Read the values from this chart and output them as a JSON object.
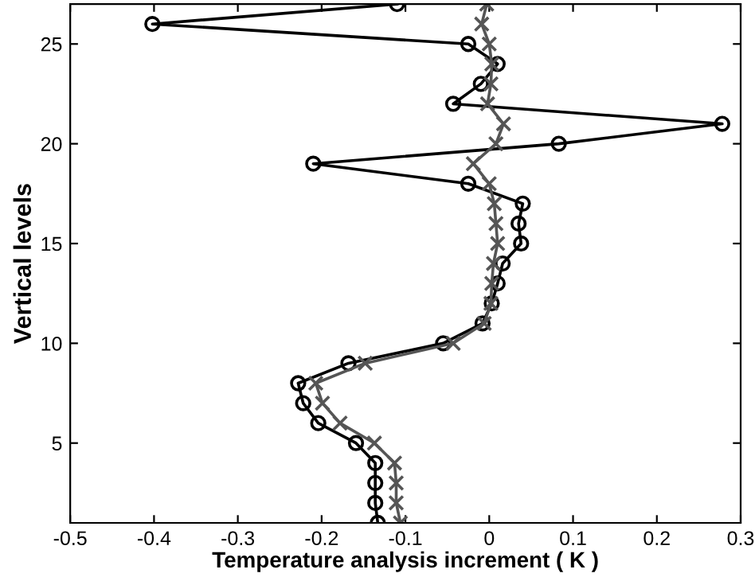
{
  "chart_data": {
    "type": "line",
    "xlabel": "Temperature analysis increment ( K )",
    "ylabel": "Vertical levels",
    "xlim": [
      -0.5,
      0.3
    ],
    "ylim": [
      1,
      27
    ],
    "xticks": [
      -0.5,
      -0.4,
      -0.3,
      -0.2,
      -0.1,
      0,
      0.1,
      0.2,
      0.3
    ],
    "yticks": [
      5,
      10,
      15,
      20,
      25
    ],
    "grid": false,
    "legend": false,
    "line_style": "solid",
    "series": [
      {
        "color": "#000000",
        "marker": "circle",
        "x": [
          -0.133,
          -0.136,
          -0.136,
          -0.136,
          -0.159,
          -0.204,
          -0.222,
          -0.228,
          -0.168,
          -0.055,
          -0.008,
          0.003,
          0.01,
          0.016,
          0.038,
          0.035,
          0.04,
          -0.025,
          -0.21,
          0.083,
          0.278,
          -0.043,
          -0.01,
          0.01,
          -0.025,
          -0.402,
          -0.11
        ],
        "values": [
          1,
          2,
          3,
          4,
          5,
          6,
          7,
          8,
          9,
          10,
          11,
          12,
          13,
          14,
          15,
          16,
          17,
          18,
          19,
          20,
          21,
          22,
          23,
          24,
          25,
          26,
          27
        ]
      },
      {
        "color": "#555555",
        "marker": "cross",
        "x": [
          -0.106,
          -0.111,
          -0.111,
          -0.113,
          -0.137,
          -0.178,
          -0.199,
          -0.207,
          -0.148,
          -0.043,
          -0.006,
          0.002,
          0.003,
          0.005,
          0.01,
          0.008,
          0.006,
          0.0,
          -0.019,
          0.008,
          0.017,
          -0.002,
          0.002,
          0.003,
          0.0,
          -0.009,
          -0.003
        ],
        "values": [
          1,
          2,
          3,
          4,
          5,
          6,
          7,
          8,
          9,
          10,
          11,
          12,
          13,
          14,
          15,
          16,
          17,
          18,
          19,
          20,
          21,
          22,
          23,
          24,
          25,
          26,
          27
        ]
      }
    ]
  }
}
